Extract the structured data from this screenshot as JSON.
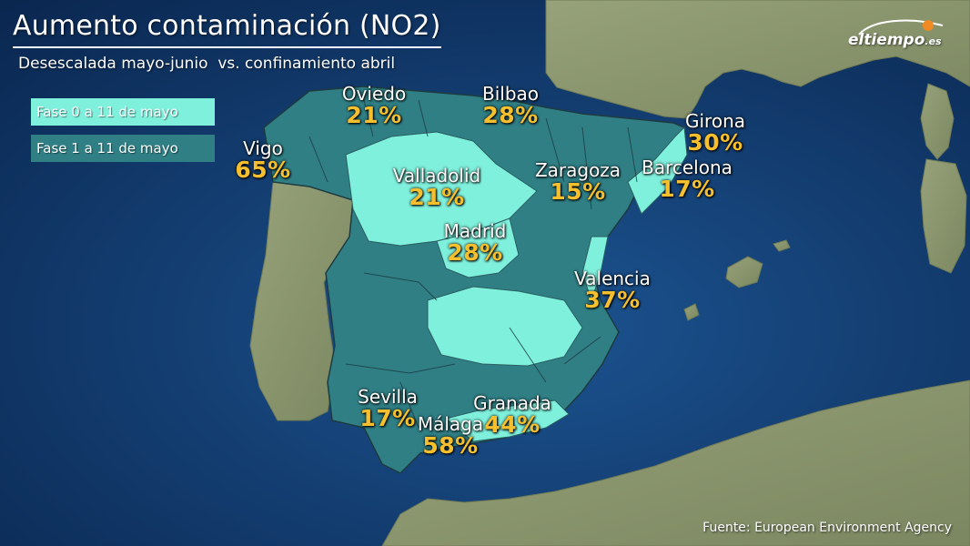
{
  "title": "Aumento contaminación (NO2)",
  "subtitle": "Desescalada mayo-junio  vs. confinamiento abril",
  "legend": [
    {
      "label": "Fase 0 a 11 de mayo",
      "color": "#7ff0dc"
    },
    {
      "label": "Fase 1 a 11 de mayo",
      "color": "#2f7f85"
    }
  ],
  "cities": [
    {
      "name": "Oviedo",
      "value": "21%",
      "phase": 1
    },
    {
      "name": "Bilbao",
      "value": "28%",
      "phase": 1
    },
    {
      "name": "Vigo",
      "value": "65%",
      "phase": 1
    },
    {
      "name": "Girona",
      "value": "30%",
      "phase": 1
    },
    {
      "name": "Valladolid",
      "value": "21%",
      "phase": 0
    },
    {
      "name": "Zaragoza",
      "value": "15%",
      "phase": 1
    },
    {
      "name": "Barcelona",
      "value": "17%",
      "phase": 0
    },
    {
      "name": "Madrid",
      "value": "28%",
      "phase": 0
    },
    {
      "name": "Valencia",
      "value": "37%",
      "phase": 1
    },
    {
      "name": "Sevilla",
      "value": "17%",
      "phase": 1
    },
    {
      "name": "Granada",
      "value": "44%",
      "phase": 0
    },
    {
      "name": "Málaga",
      "value": "58%",
      "phase": 0
    }
  ],
  "colors": {
    "sea": "#123e74",
    "land": "#8e9a72",
    "phase0": "#7ff0dc",
    "phase1": "#2f7f85",
    "value": "#f5bf2e"
  },
  "logo": {
    "name": "eltiempo",
    "domain": ".es"
  },
  "source": "Fuente: European Environment Agency"
}
